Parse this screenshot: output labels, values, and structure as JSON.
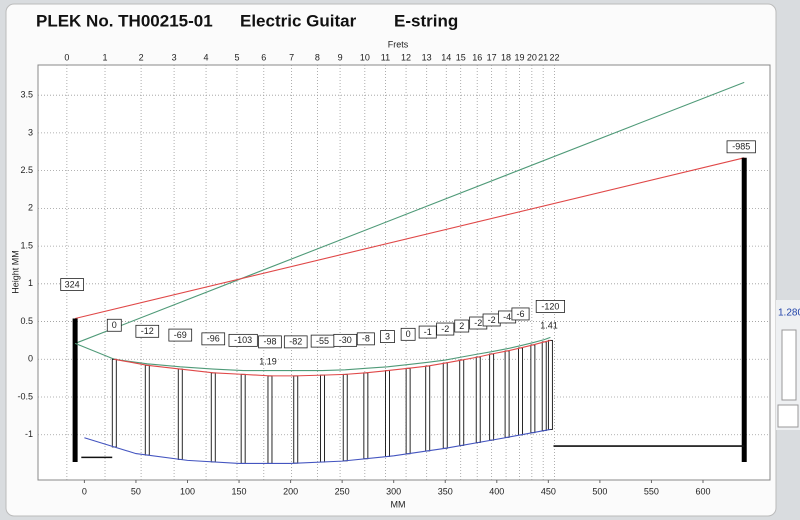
{
  "header": {
    "plek_no": "PLEK No. TH00215-01",
    "instrument": "Electric Guitar",
    "string": "E-string"
  },
  "side_panel": {
    "value": "1.280"
  },
  "chart_data": {
    "type": "line",
    "ylabel": "Height MM",
    "xlabel": "MM",
    "x2label": "Frets",
    "xlim": [
      -45,
      665
    ],
    "ylim": [
      -1.6,
      3.9
    ],
    "xticks": [
      0,
      50,
      100,
      150,
      200,
      250,
      300,
      350,
      400,
      450,
      500,
      550,
      600
    ],
    "yticks": [
      -1,
      -0.5,
      0,
      0.5,
      1,
      1.5,
      2,
      2.5,
      3,
      3.5
    ],
    "fret_ticks": [
      {
        "value": -17,
        "label": "0"
      },
      {
        "value": 20,
        "label": "1"
      },
      {
        "value": 55,
        "label": "2"
      },
      {
        "value": 87,
        "label": "3"
      },
      {
        "value": 118,
        "label": "4"
      },
      {
        "value": 148,
        "label": "5"
      },
      {
        "value": 174,
        "label": "6"
      },
      {
        "value": 201,
        "label": "7"
      },
      {
        "value": 226,
        "label": "8"
      },
      {
        "value": 248,
        "label": "9"
      },
      {
        "value": 272,
        "label": "10"
      },
      {
        "value": 292,
        "label": "11"
      },
      {
        "value": 312,
        "label": "12"
      },
      {
        "value": 332,
        "label": "13"
      },
      {
        "value": 351,
        "label": "14"
      },
      {
        "value": 365,
        "label": "15"
      },
      {
        "value": 381,
        "label": "16"
      },
      {
        "value": 395,
        "label": "17"
      },
      {
        "value": 409,
        "label": "18"
      },
      {
        "value": 422,
        "label": "19"
      },
      {
        "value": 434,
        "label": "20"
      },
      {
        "value": 445,
        "label": "21"
      },
      {
        "value": 456,
        "label": "22"
      }
    ],
    "grid": true,
    "series": [
      {
        "color": "#4f9a78",
        "x": [
          -9,
          640
        ],
        "values": [
          0.21,
          3.67
        ]
      },
      {
        "color": "#e04848",
        "x": [
          -9,
          640
        ],
        "values": [
          0.54,
          2.67
        ],
        "end_bars": true
      },
      {
        "color": "#4f9a78",
        "x": [
          -9,
          29,
          61,
          93,
          125,
          154,
          180,
          205,
          231,
          253,
          273,
          294,
          314,
          333,
          350,
          366,
          382,
          395,
          410,
          423,
          435,
          446,
          452
        ],
        "values": [
          0.21,
          0.0,
          -0.06,
          -0.1,
          -0.13,
          -0.15,
          -0.15,
          -0.15,
          -0.15,
          -0.14,
          -0.12,
          -0.1,
          -0.07,
          -0.04,
          -0.01,
          0.03,
          0.07,
          0.1,
          0.14,
          0.18,
          0.22,
          0.26,
          0.29
        ]
      },
      {
        "color": "#e04848",
        "frets": true,
        "x": [
          29,
          61,
          93,
          125,
          154,
          180,
          205,
          231,
          253,
          273,
          294,
          314,
          333,
          350,
          366,
          382,
          395,
          410,
          423,
          435,
          446,
          452
        ],
        "values": [
          0.0,
          -0.08,
          -0.13,
          -0.18,
          -0.2,
          -0.22,
          -0.22,
          -0.21,
          -0.2,
          -0.18,
          -0.15,
          -0.12,
          -0.09,
          -0.05,
          -0.01,
          0.03,
          0.07,
          0.11,
          0.15,
          0.19,
          0.23,
          0.25
        ]
      },
      {
        "color": "#4455c0",
        "x": [
          0,
          50,
          100,
          150,
          200,
          250,
          300,
          350,
          400,
          452
        ],
        "values": [
          -1.04,
          -1.25,
          -1.34,
          -1.38,
          -1.38,
          -1.35,
          -1.28,
          -1.18,
          -1.06,
          -0.93
        ]
      },
      {
        "color": "#111111",
        "x": [
          -3,
          27,
          28,
          455,
          640
        ],
        "values": [
          -1.3,
          -1.3,
          null,
          -1.15,
          -1.15
        ]
      }
    ],
    "relief_values": [
      0,
      -12,
      -69,
      -96,
      -103,
      -98,
      -82,
      -55,
      -30,
      -8,
      3,
      0,
      -1,
      -2,
      2,
      -2,
      -2,
      -4,
      -6,
      null,
      null,
      -120
    ],
    "nut_label": 324,
    "bridge_label": -985,
    "annotations": [
      1.19,
      1.41
    ]
  }
}
